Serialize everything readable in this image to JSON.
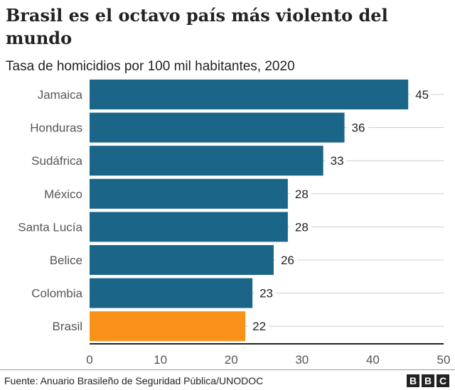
{
  "title": "Brasil es el octavo país más violento del mundo",
  "subtitle": "Tasa de homicidios por 100 mil habitantes, 2020",
  "source": "Fuente: Anuario Brasileño de Seguridad Pública/UNODOC",
  "logo": "BBC",
  "colors": {
    "bar": "#1b6688",
    "highlight": "#fa9219"
  },
  "chart_data": {
    "type": "bar",
    "orientation": "horizontal",
    "categories": [
      "Jamaica",
      "Honduras",
      "Sudáfrica",
      "México",
      "Santa Lucía",
      "Belice",
      "Colombia",
      "Brasil"
    ],
    "values": [
      45,
      36,
      33,
      28,
      28,
      26,
      23,
      22
    ],
    "highlight": "Brasil",
    "xlim": [
      0,
      50
    ],
    "xticks": [
      0,
      10,
      20,
      30,
      40,
      50
    ],
    "grid": true,
    "title": "Brasil es el octavo país más violento del mundo",
    "subtitle": "Tasa de homicidios por 100 mil habitantes, 2020"
  }
}
